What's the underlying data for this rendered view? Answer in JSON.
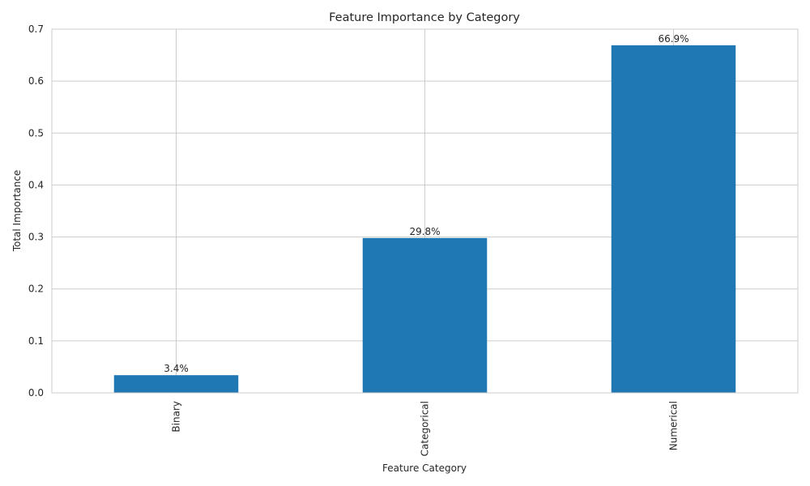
{
  "chart_data": {
    "type": "bar",
    "title": "Feature Importance by Category",
    "xlabel": "Feature Category",
    "ylabel": "Total Importance",
    "categories": [
      "Binary",
      "Categorical",
      "Numerical"
    ],
    "values": [
      0.034,
      0.298,
      0.669
    ],
    "data_labels": [
      "3.4%",
      "29.8%",
      "66.9%"
    ],
    "ylim": [
      0,
      0.7
    ],
    "yticks": [
      0.0,
      0.1,
      0.2,
      0.3,
      0.4,
      0.5,
      0.6,
      0.7
    ],
    "ytick_labels": [
      "0.0",
      "0.1",
      "0.2",
      "0.3",
      "0.4",
      "0.5",
      "0.6",
      "0.7"
    ],
    "grid": true,
    "bar_color": "#1f77b4",
    "grid_color": "#cccccc",
    "spine_color": "#cccccc",
    "text_color": "#262626"
  }
}
